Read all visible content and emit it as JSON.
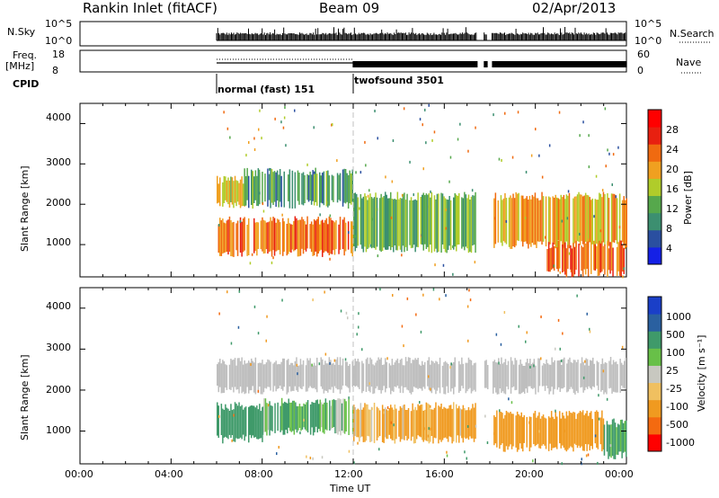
{
  "header": {
    "station": "Rankin Inlet (fitACF)",
    "beam": "Beam 09",
    "date": "02/Apr/2013"
  },
  "strips": {
    "nsky_label": "N.Sky",
    "nsky_ticks": [
      "10^5",
      "10^0"
    ],
    "nsearch_label": "N.Search",
    "nsearch_ticks": [
      "10^5",
      "10^0"
    ],
    "freq_label_1": "Freq.",
    "freq_label_2": "[MHz]",
    "freq_ticks": [
      "18",
      "8"
    ],
    "nave_label": "Nave",
    "nave_ticks": [
      "60",
      "0"
    ],
    "cpid_label": "CPID",
    "cpid_segments": [
      {
        "label": "normal (fast) 151",
        "start_h": 6.0,
        "end_h": 12.0
      },
      {
        "label": "twofsound 3501",
        "start_h": 12.0,
        "end_h": 24.0
      }
    ]
  },
  "colors": {
    "power_scale": [
      "#1420e6",
      "#2a4fa0",
      "#3c8f70",
      "#56a84c",
      "#b0cc2a",
      "#f0a020",
      "#f06a10",
      "#e82010",
      "#ff0000"
    ],
    "velocity_scale": [
      "#ff0000",
      "#f46a10",
      "#f09a20",
      "#f0c060",
      "#c8c8c0",
      "#68c048",
      "#3f9a6a",
      "#2a60a0",
      "#1a3fc8"
    ],
    "ground_scatter": "#bebebe",
    "dashed_line": "#c0c0c0"
  },
  "chart_data": [
    {
      "type": "heatmap",
      "panel": "power",
      "ylabel": "Slant Range [km]",
      "xlabel": "Time UT",
      "colorbar_label": "Power [dB]",
      "colorbar_ticks": [
        "28",
        "24",
        "20",
        "16",
        "12",
        "8",
        "4"
      ],
      "colorbar_range": [
        0,
        32
      ],
      "xlim": [
        0,
        24
      ],
      "xticks": [
        "00:00",
        "04:00",
        "08:00",
        "12:00",
        "16:00",
        "20:00",
        "00:00"
      ],
      "ylim": [
        200,
        4500
      ],
      "yticks": [
        1000,
        2000,
        3000,
        4000
      ],
      "data_gaps_h": [
        [
          17.45,
          17.75
        ],
        [
          17.9,
          18.1
        ]
      ],
      "mode_change_h": 12.0,
      "regions": [
        {
          "t0": 6.0,
          "t1": 12.0,
          "r0": 800,
          "r1": 1600,
          "value": 26
        },
        {
          "t0": 6.0,
          "t1": 7.2,
          "r0": 2000,
          "r1": 2600,
          "value": 20
        },
        {
          "t0": 7.2,
          "t1": 12.0,
          "r0": 2000,
          "r1": 2800,
          "value": 12
        },
        {
          "t0": 12.0,
          "t1": 17.4,
          "r0": 900,
          "r1": 2200,
          "value": 14
        },
        {
          "t0": 18.1,
          "t1": 24.0,
          "r0": 1000,
          "r1": 2200,
          "value": 22
        },
        {
          "t0": 20.5,
          "t1": 24.0,
          "r0": 300,
          "r1": 1000,
          "value": 26
        }
      ]
    },
    {
      "type": "heatmap",
      "panel": "velocity",
      "ylabel": "Slant Range [km]",
      "xlabel": "Time UT",
      "colorbar_label": "Velocity [m s⁻¹]",
      "colorbar_ticks": [
        "1000",
        "500",
        "100",
        "25",
        "-25",
        "-100",
        "-500",
        "-1000"
      ],
      "colorbar_range": [
        -1000,
        1000
      ],
      "xlim": [
        0,
        24
      ],
      "xticks": [
        "00:00",
        "04:00",
        "08:00",
        "12:00",
        "16:00",
        "20:00",
        "00:00"
      ],
      "ylim": [
        200,
        4500
      ],
      "yticks": [
        1000,
        2000,
        3000,
        4000
      ],
      "regions": [
        {
          "t0": 6.0,
          "t1": 8.0,
          "r0": 800,
          "r1": 1600,
          "value": 300
        },
        {
          "t0": 8.0,
          "t1": 12.0,
          "r0": 1000,
          "r1": 1700,
          "value": 150
        },
        {
          "t0": 6.0,
          "t1": 24.0,
          "r0": 2000,
          "r1": 2700,
          "value": 0
        },
        {
          "t0": 12.0,
          "t1": 17.4,
          "r0": 800,
          "r1": 1600,
          "value": -150
        },
        {
          "t0": 18.1,
          "t1": 23.0,
          "r0": 600,
          "r1": 1400,
          "value": -250
        },
        {
          "t0": 23.0,
          "t1": 24.0,
          "r0": 400,
          "r1": 1200,
          "value": 200
        }
      ]
    }
  ]
}
